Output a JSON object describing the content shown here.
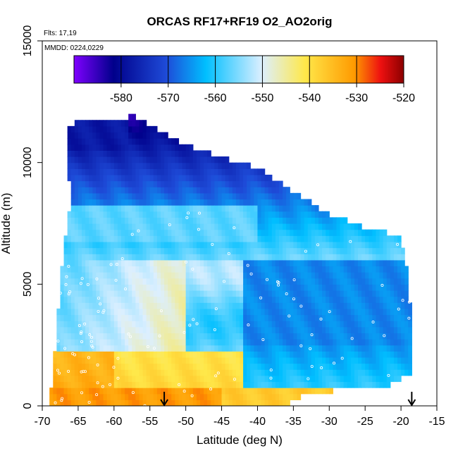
{
  "chart_data": {
    "type": "heatmap",
    "title": "ORCAS RF17+RF19 O2_AO2orig",
    "xlabel": "Latitude (deg N)",
    "ylabel": "Altitude (m)",
    "annotations": {
      "flights": "Flts: 17,19",
      "dates": "MMDD: 0224,0229"
    },
    "xlim": [
      -70,
      -15
    ],
    "ylim": [
      0,
      15000
    ],
    "x_ticks": [
      -70,
      -65,
      -60,
      -55,
      -50,
      -45,
      -40,
      -35,
      -30,
      -25,
      -20,
      -15
    ],
    "y_ticks": [
      0,
      5000,
      10000,
      15000
    ],
    "colorbar": {
      "range": [
        -590,
        -520
      ],
      "ticks": [
        -580,
        -570,
        -560,
        -550,
        -540,
        -530,
        -520
      ]
    },
    "arrows_lat": [
      -53,
      -18.5
    ],
    "colors": {
      "purple": "#7f00ff",
      "darkblue": "#00008b",
      "blue": "#1e4bd8",
      "skyblue": "#00bfff",
      "paleblue": "#dcefff",
      "yellow": "#ffe84a",
      "orange": "#ff9a00",
      "red": "#ee1010",
      "darkred": "#8b0000"
    }
  }
}
